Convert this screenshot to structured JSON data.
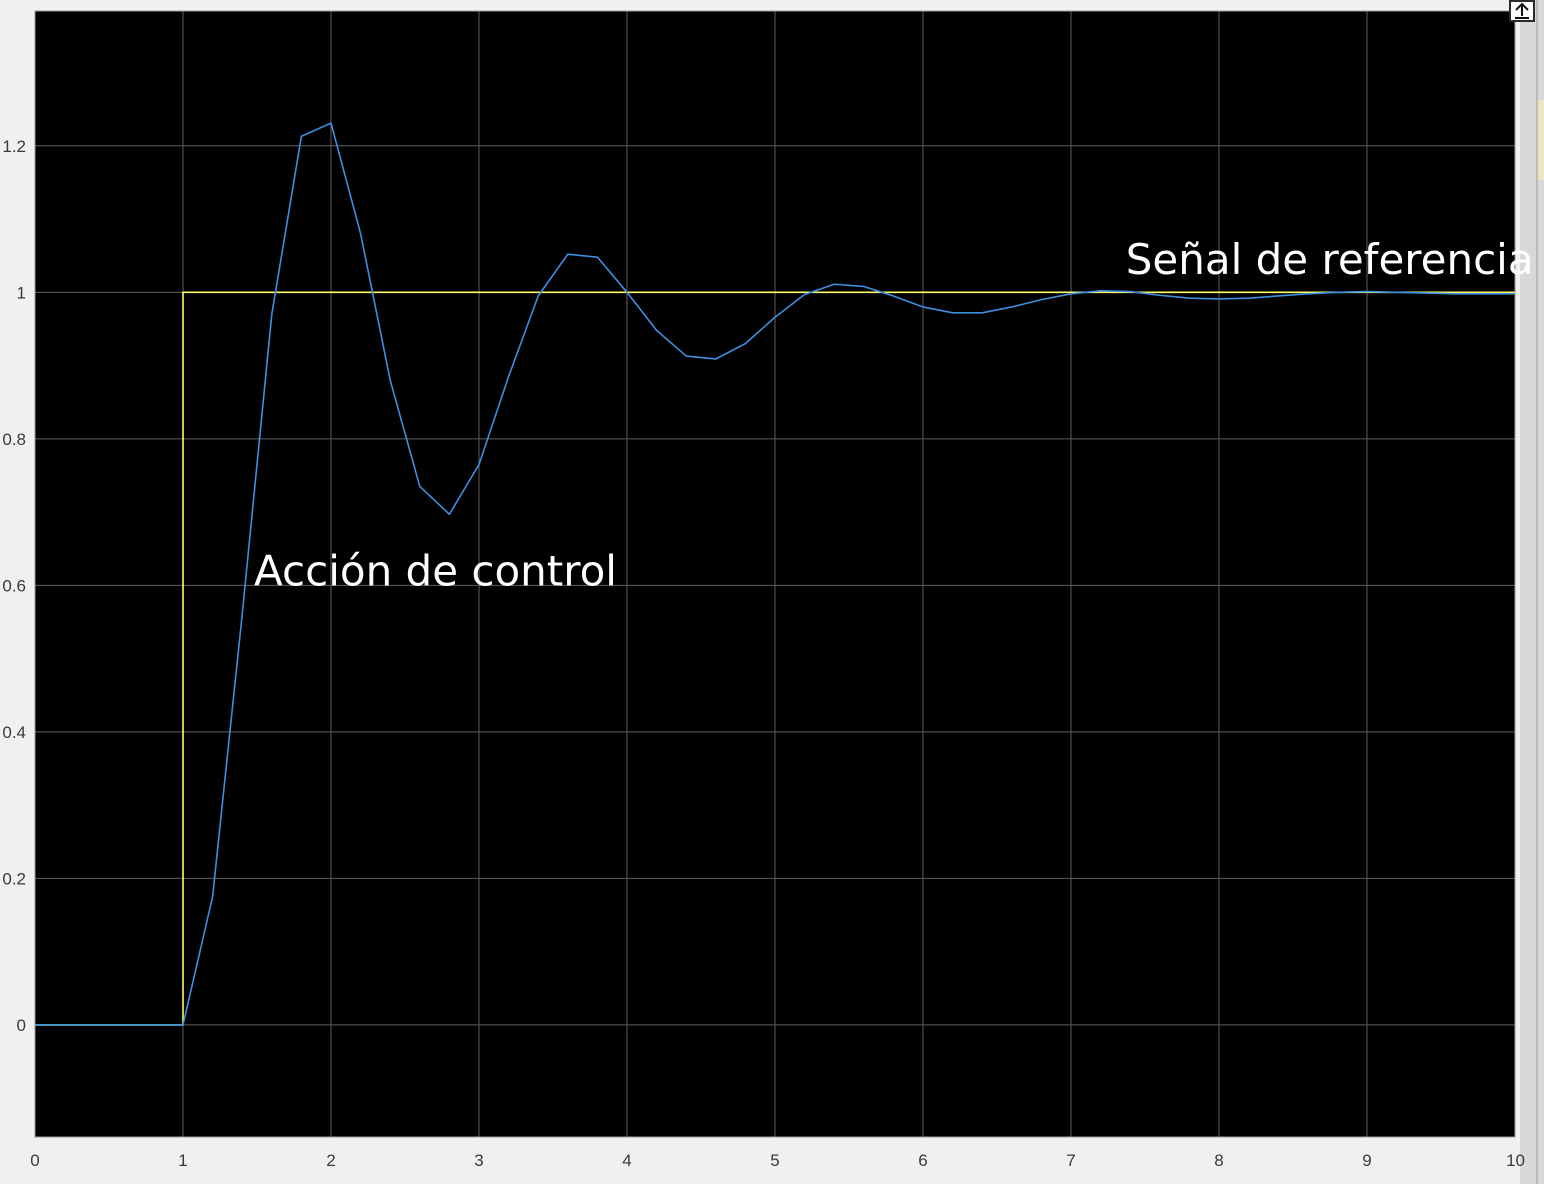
{
  "chart_data": {
    "type": "line",
    "xlim": [
      0,
      10
    ],
    "ylim": [
      -0.153,
      1.384
    ],
    "grid": true,
    "background": "#000000",
    "grid_color": "#5f5f5f",
    "x_ticks": [
      0,
      1,
      2,
      3,
      4,
      5,
      6,
      7,
      8,
      9,
      10
    ],
    "x_tick_labels": [
      "0",
      "1",
      "2",
      "3",
      "4",
      "5",
      "6",
      "7",
      "8",
      "9",
      "10"
    ],
    "y_ticks": [
      0,
      0.2,
      0.4,
      0.6,
      0.8,
      1,
      1.2
    ],
    "y_tick_labels": [
      "0",
      "0.2",
      "0.4",
      "0.6",
      "0.8",
      "1",
      "1.2"
    ],
    "series": [
      {
        "color": "#ffff66",
        "x": [
          0,
          1,
          1,
          10
        ],
        "y": [
          0,
          0,
          1,
          1
        ]
      },
      {
        "color": "#3d8fe0",
        "x": [
          0,
          1.0,
          1.2,
          1.4,
          1.6,
          1.8,
          2.0,
          2.2,
          2.4,
          2.6,
          2.8,
          3.0,
          3.2,
          3.4,
          3.6,
          3.8,
          4.0,
          4.2,
          4.4,
          4.6,
          4.8,
          5.0,
          5.2,
          5.4,
          5.6,
          5.8,
          6.0,
          6.2,
          6.4,
          6.6,
          6.8,
          7.0,
          7.2,
          7.4,
          7.6,
          7.8,
          8.0,
          8.2,
          8.4,
          8.6,
          8.8,
          9.0,
          9.2,
          9.4,
          9.6,
          9.8,
          10.0
        ],
        "y": [
          0,
          0,
          0.175,
          0.56,
          0.97,
          1.213,
          1.231,
          1.08,
          0.88,
          0.735,
          0.697,
          0.765,
          0.885,
          0.995,
          1.052,
          1.048,
          1.0,
          0.948,
          0.913,
          0.909,
          0.93,
          0.966,
          0.997,
          1.011,
          1.008,
          0.995,
          0.98,
          0.972,
          0.972,
          0.98,
          0.99,
          0.998,
          1.002,
          1.001,
          0.996,
          0.992,
          0.991,
          0.992,
          0.995,
          0.998,
          1.0,
          1.001,
          1.0,
          0.999,
          0.998,
          0.998,
          0.998
        ]
      }
    ],
    "annotations": [
      {
        "text": "Acción de control",
        "x": 1.48,
        "y": 0.6
      },
      {
        "text": "Señal de referencia",
        "x": 7.37,
        "y": 1.025
      }
    ]
  },
  "toolbar": {
    "icon": "expand-icon"
  },
  "right_panel_color": "#d8d8d8"
}
